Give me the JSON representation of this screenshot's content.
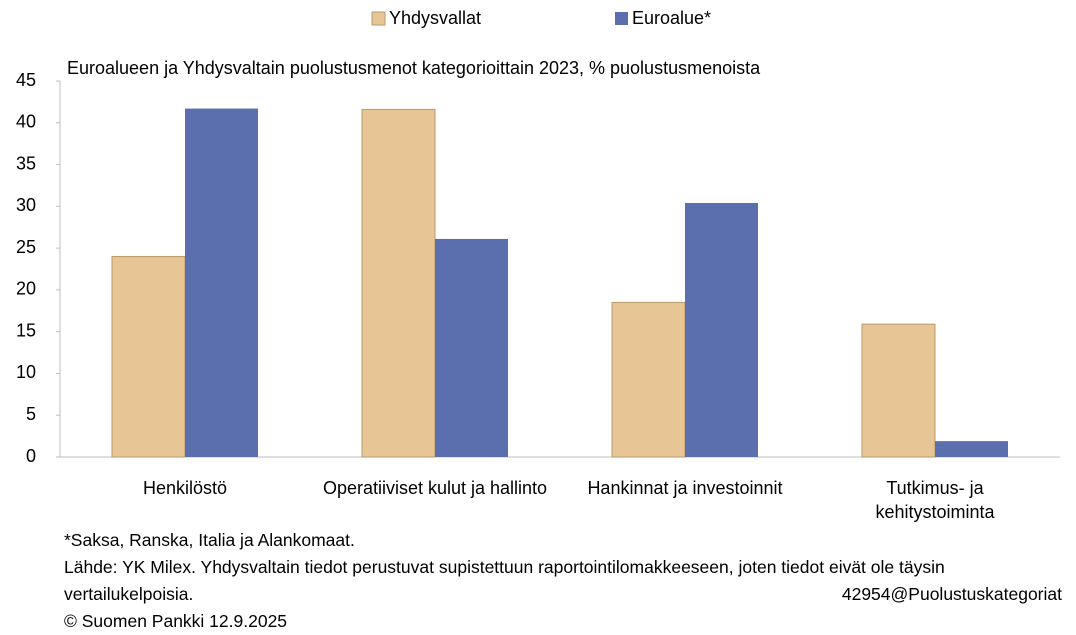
{
  "chart_data": {
    "type": "bar",
    "title": "Euroalueen ja Yhdysvaltain puolustusmenot kategorioittain 2023, % puolustusmenoista",
    "categories": [
      "Henkilöstö",
      "Operatiiviset kulut ja hallinto",
      "Hankinnat ja investoinnit",
      "Tutkimus- ja kehitystoiminta"
    ],
    "series": [
      {
        "name": "Yhdysvallat",
        "color": "#e8c595",
        "values": [
          24,
          41.6,
          18.5,
          15.9
        ]
      },
      {
        "name": "Euroalue*",
        "color": "#5b6fae",
        "values": [
          41.7,
          26.1,
          30.4,
          1.9
        ]
      }
    ],
    "ylim": [
      0,
      45
    ],
    "yticks": [
      0,
      5,
      10,
      15,
      20,
      25,
      30,
      35,
      40,
      45
    ],
    "grid": false,
    "legend": "top",
    "footnote": "*Saksa, Ranska, Italia ja Alankomaat.",
    "source": "Lähde: YK Milex. Yhdysvaltain tiedot perustuvat supistettuun raportointilomakkeeseen, joten tiedot eivät ole täysin vertailukelpoisia.",
    "code": "42954@Puolustuskategoriat",
    "copyright": "© Suomen Pankki 12.9.2025"
  }
}
